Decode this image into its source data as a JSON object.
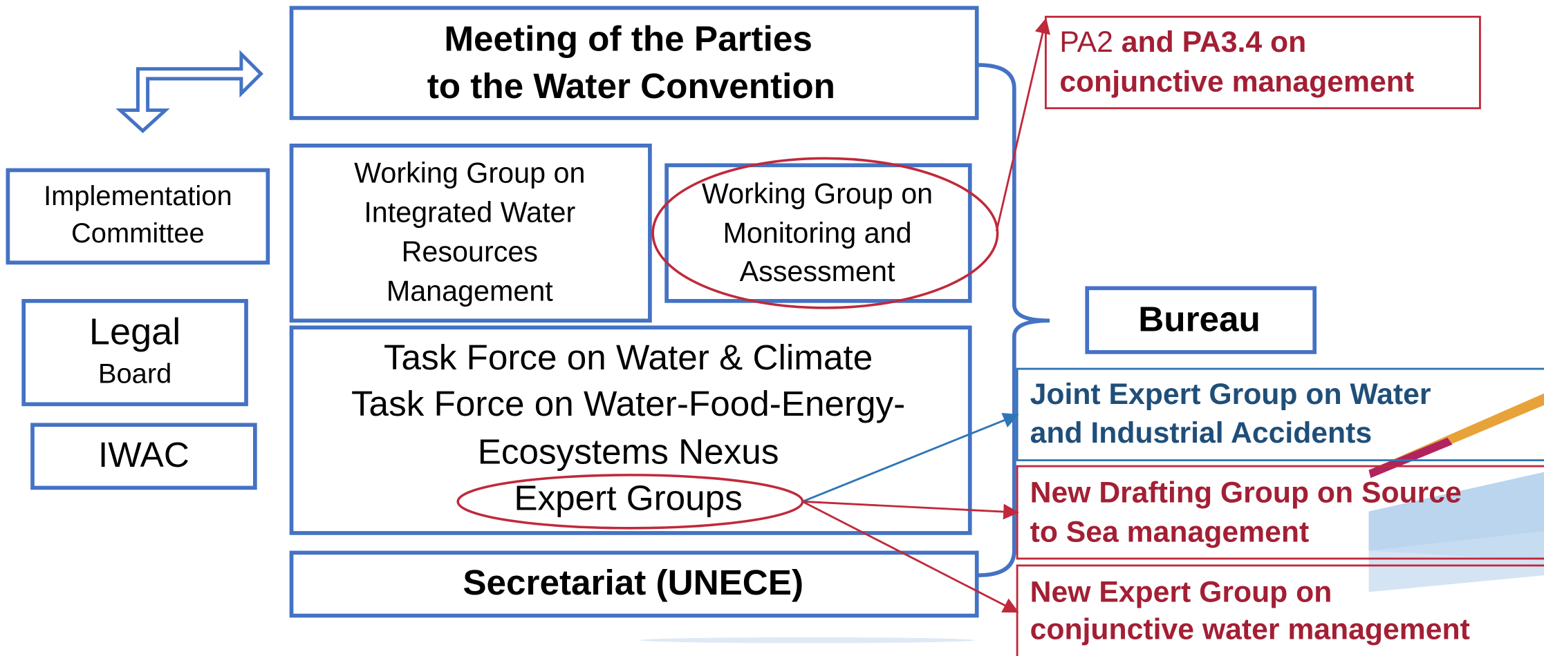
{
  "meeting_of_parties": {
    "lines": [
      "Meeting of the Parties",
      "to the Water Convention"
    ]
  },
  "implementation_committee": {
    "lines": [
      "Implementation",
      "Committee"
    ]
  },
  "legal_board": {
    "lines": [
      "Legal",
      "Board"
    ]
  },
  "iwac": {
    "label": "IWAC"
  },
  "wg_iwrm": {
    "lines": [
      "Working Group on",
      "Integrated Water",
      "Resources",
      "Management"
    ]
  },
  "wg_monitoring": {
    "lines": [
      "Working Group on",
      "Monitoring and",
      "Assessment"
    ]
  },
  "task_forces": {
    "lines": [
      "Task Force on Water & Climate",
      "Task Force on Water-Food-Energy-",
      "Ecosystems Nexus",
      "Expert Groups"
    ]
  },
  "secretariat": {
    "label": "Secretariat (UNECE)"
  },
  "bureau": {
    "label": "Bureau"
  },
  "pa_note": {
    "regular": "PA2",
    "bold": " and PA3.4 on",
    "line2": "conjunctive management"
  },
  "joint_expert_group": {
    "lines": [
      "Joint Expert Group on Water",
      "and Industrial Accidents"
    ]
  },
  "drafting_group": {
    "lines": [
      "New Drafting Group on Source",
      "to Sea management"
    ]
  },
  "new_expert_group": {
    "lines": [
      "New Expert Group on",
      "conjunctive water management"
    ]
  }
}
